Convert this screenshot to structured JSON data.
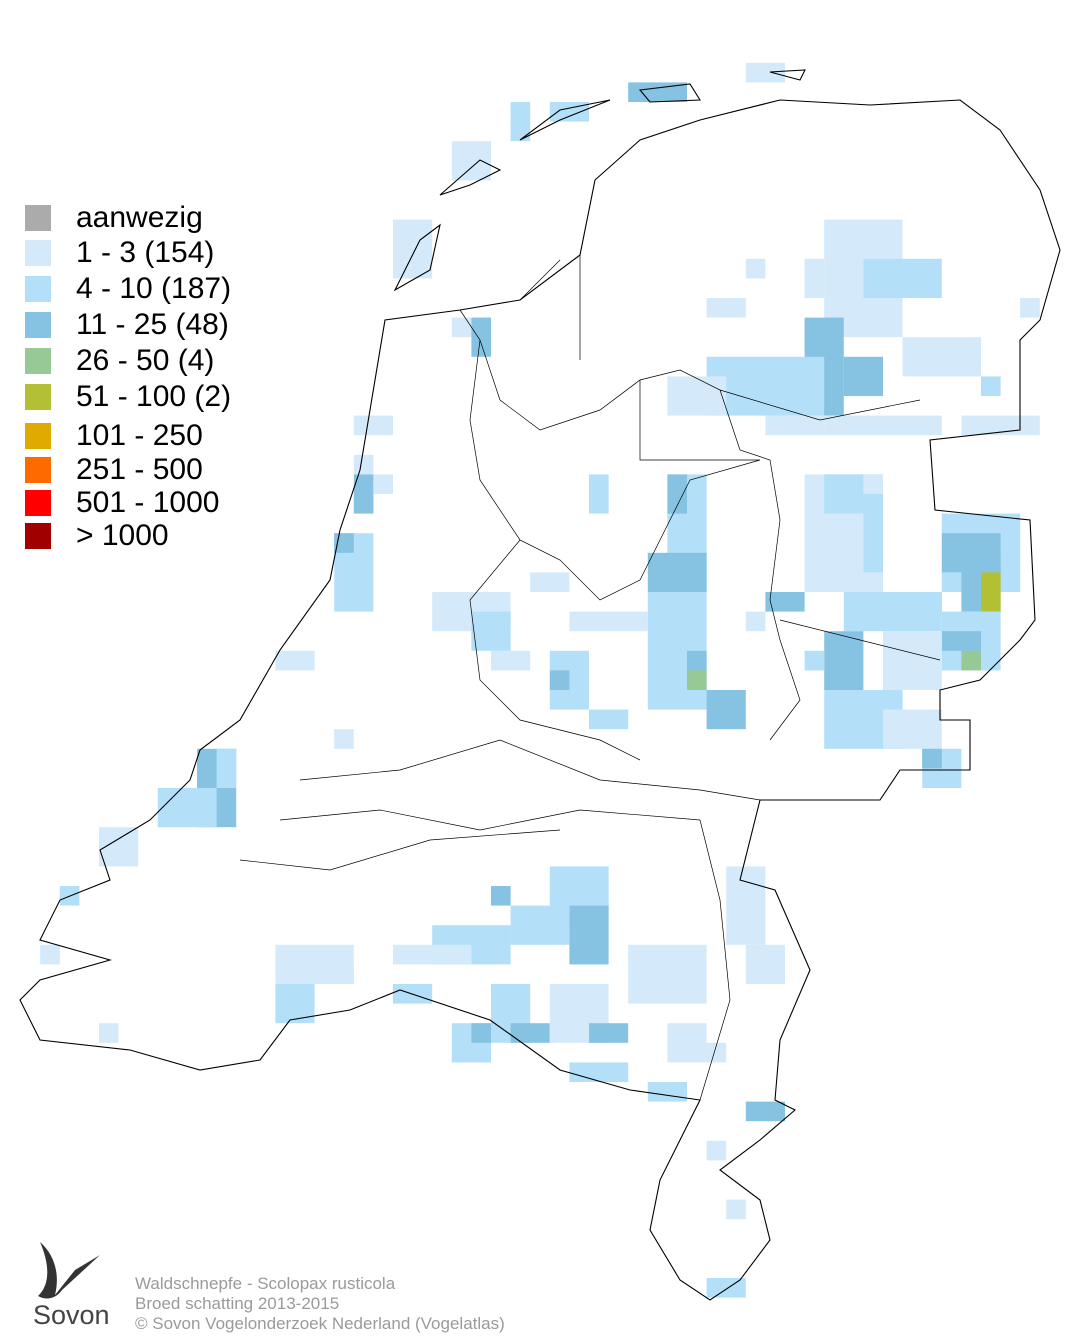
{
  "legend": {
    "items": [
      {
        "label": "aanwezig",
        "color": "#ababab"
      },
      {
        "label": "1 - 3 (154)",
        "color": "#d4eafa"
      },
      {
        "label": "4 - 10 (187)",
        "color": "#b3e0f8"
      },
      {
        "label": "11 - 25 (48)",
        "color": "#86c2e2"
      },
      {
        "label": "26 - 50 (4)",
        "color": "#96c996"
      },
      {
        "label": "51 - 100 (2)",
        "color": "#b3c034"
      },
      {
        "label": "101 - 250",
        "color": "#e0ab00"
      },
      {
        "label": "251 - 500",
        "color": "#ff6a00"
      },
      {
        "label": "501 - 1000",
        "color": "#ff0000"
      },
      {
        "label": "> 1000",
        "color": "#a00000"
      }
    ]
  },
  "footer": {
    "lines": [
      "Waldschnepfe - Scolopax rusticola",
      "Broed schatting 2013-2015",
      "© Sovon Vogelonderzoek Nederland (Vogelatlas)"
    ]
  },
  "logo": {
    "text": "Sovon"
  }
}
